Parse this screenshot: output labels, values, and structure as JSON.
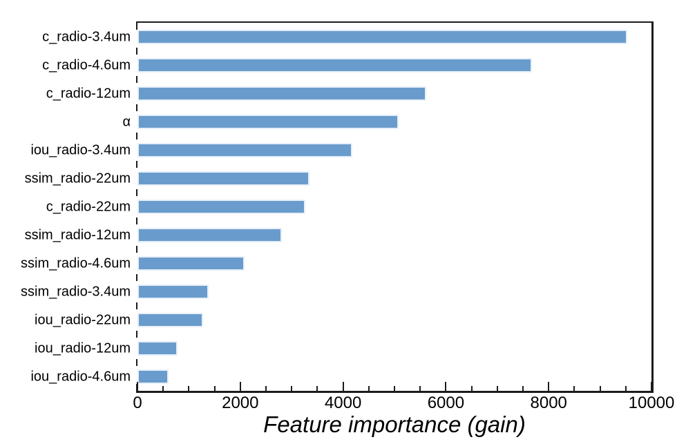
{
  "chart_data": {
    "type": "bar",
    "orientation": "horizontal",
    "title": "",
    "xlabel": "Feature importance (gain)",
    "ylabel": "",
    "categories": [
      "c_radio-3.4um",
      "c_radio-4.6um",
      "c_radio-12um",
      "α",
      "iou_radio-3.4um",
      "ssim_radio-22um",
      "c_radio-22um",
      "ssim_radio-12um",
      "ssim_radio-4.6um",
      "ssim_radio-3.4um",
      "iou_radio-22um",
      "iou_radio-12um",
      "iou_radio-4.6um"
    ],
    "values": [
      9530,
      7670,
      5620,
      5080,
      4180,
      3340,
      3260,
      2810,
      2080,
      1390,
      1280,
      780,
      600
    ],
    "xlim": [
      0,
      10000
    ],
    "x_major_ticks": [
      0,
      2000,
      4000,
      6000,
      8000,
      10000
    ],
    "x_major_tick_labels": [
      "0",
      "2000",
      "4000",
      "6000",
      "8000",
      "10000"
    ],
    "x_minor_tick_step": 500,
    "grid": false,
    "legend": null,
    "tick_direction": "in",
    "colors": {
      "bar_fill": "#699CCD",
      "bar_edge": "#E7EFF8",
      "axis": "#1B1B1B",
      "text": "#000000"
    }
  }
}
